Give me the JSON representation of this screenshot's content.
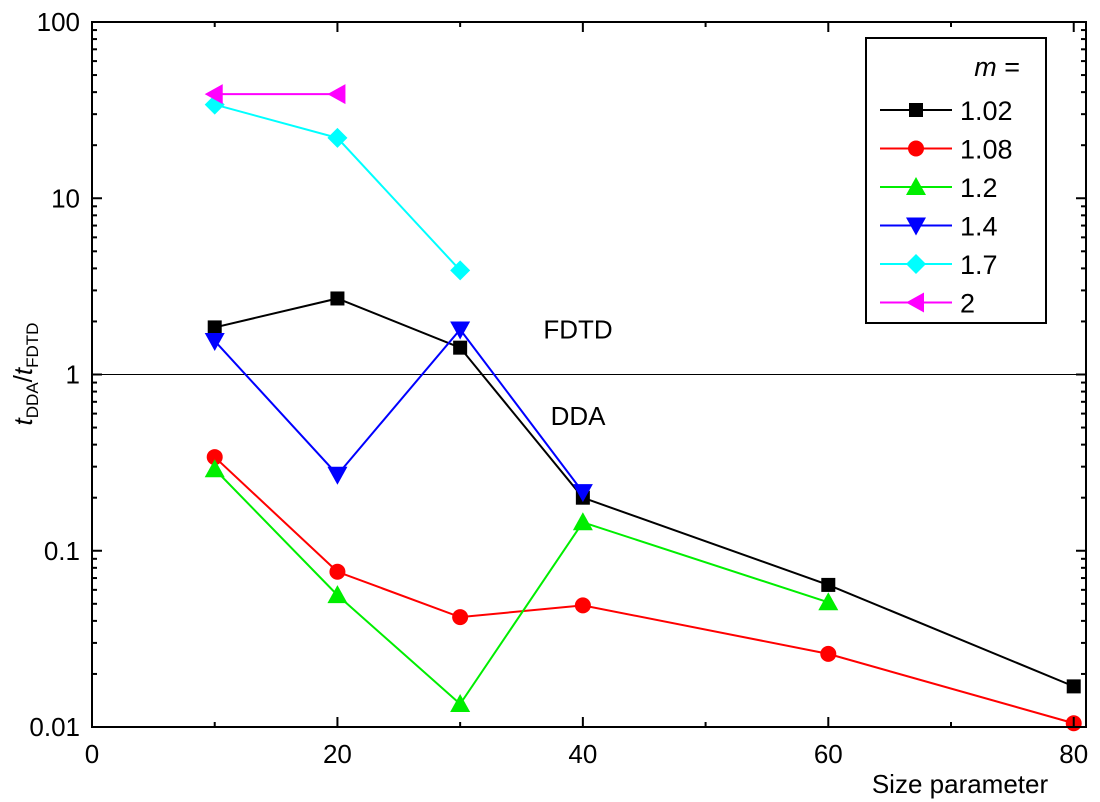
{
  "chart_data": {
    "type": "line",
    "xlabel": "Size parameter",
    "ylabel": {
      "t1": "t",
      "s1": "DDA",
      "sep": "/",
      "t2": "t",
      "s2": "FDTD"
    },
    "xlim": [
      0,
      81
    ],
    "ylim": [
      0.01,
      100
    ],
    "yscale": "log",
    "xticks": [
      0,
      20,
      40,
      60,
      80
    ],
    "xtick_labels": [
      "0",
      "20",
      "40",
      "60",
      "80"
    ],
    "yticks": [
      0.01,
      0.1,
      1,
      10,
      100
    ],
    "ytick_labels": [
      "0.01",
      "0.1",
      "1",
      "10",
      "100"
    ],
    "reference_line": 1,
    "annotations": [
      {
        "text": "FDTD",
        "x": 37,
        "y": 1.8
      },
      {
        "text": "DDA",
        "x": 37,
        "y": 0.58
      }
    ],
    "legend": {
      "title_var": "m",
      "title_eq": " =",
      "position": "top-right"
    },
    "grid": false,
    "series": [
      {
        "name": "1.02",
        "color": "#000000",
        "marker": "square",
        "x": [
          10,
          20,
          30,
          40,
          60,
          80
        ],
        "y": [
          1.85,
          2.7,
          1.42,
          0.2,
          0.064,
          0.017
        ]
      },
      {
        "name": "1.08",
        "color": "#ff0000",
        "marker": "circle",
        "x": [
          10,
          20,
          30,
          40,
          60,
          80
        ],
        "y": [
          0.34,
          0.076,
          0.042,
          0.049,
          0.026,
          0.0105
        ]
      },
      {
        "name": "1.2",
        "color": "#00ee00",
        "marker": "triangle-up",
        "x": [
          10,
          20,
          30,
          40,
          60
        ],
        "y": [
          0.29,
          0.056,
          0.0135,
          0.145,
          0.051
        ]
      },
      {
        "name": "1.4",
        "color": "#0000ff",
        "marker": "triangle-down",
        "x": [
          10,
          20,
          30,
          40
        ],
        "y": [
          1.55,
          0.27,
          1.8,
          0.215
        ]
      },
      {
        "name": "1.7",
        "color": "#00ffff",
        "marker": "diamond",
        "x": [
          10,
          20,
          30
        ],
        "y": [
          34,
          22,
          3.9
        ]
      },
      {
        "name": "2",
        "color": "#ff00ff",
        "marker": "triangle-left",
        "x": [
          10,
          20
        ],
        "y": [
          39,
          39
        ]
      }
    ]
  }
}
